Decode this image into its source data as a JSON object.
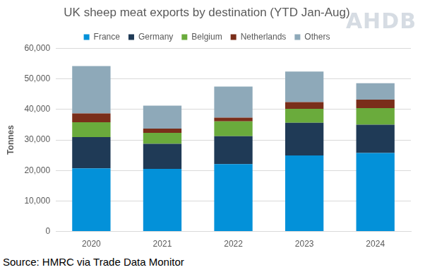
{
  "chart_data": {
    "type": "bar",
    "title": "UK sheep meat exports by destination (YTD Jan-Aug)",
    "y_label": "Tonnes",
    "source": "Source: HMRC via Trade Data Monitor",
    "logo": "AHDB",
    "categories": [
      "2020",
      "2021",
      "2022",
      "2023",
      "2024"
    ],
    "series": [
      {
        "name": "France",
        "color": "#0391d9",
        "values": [
          20700,
          20500,
          22100,
          24900,
          25700
        ]
      },
      {
        "name": "Germany",
        "color": "#1f3a56",
        "values": [
          10200,
          8200,
          9100,
          10700,
          9300
        ]
      },
      {
        "name": "Belgium",
        "color": "#6aab3c",
        "values": [
          4900,
          3600,
          4900,
          4600,
          5400
        ]
      },
      {
        "name": "Netherlands",
        "color": "#7a2e1a",
        "values": [
          2900,
          1400,
          1200,
          2200,
          2800
        ]
      },
      {
        "name": "Others",
        "color": "#8ea9b9",
        "values": [
          15500,
          7500,
          10200,
          10000,
          5400
        ]
      }
    ],
    "stacked": true,
    "legend": "top",
    "grid": true,
    "ylim": [
      0,
      60000
    ],
    "yticks": [
      0,
      {
        "value": 10000,
        "label": "10,000"
      },
      {
        "value": 20000,
        "label": "20,000"
      },
      {
        "value": 30000,
        "label": "30,000"
      },
      {
        "value": 40000,
        "label": "40,000"
      },
      {
        "value": 50000,
        "label": "50,000"
      },
      {
        "value": 60000,
        "label": "60,000"
      }
    ]
  }
}
